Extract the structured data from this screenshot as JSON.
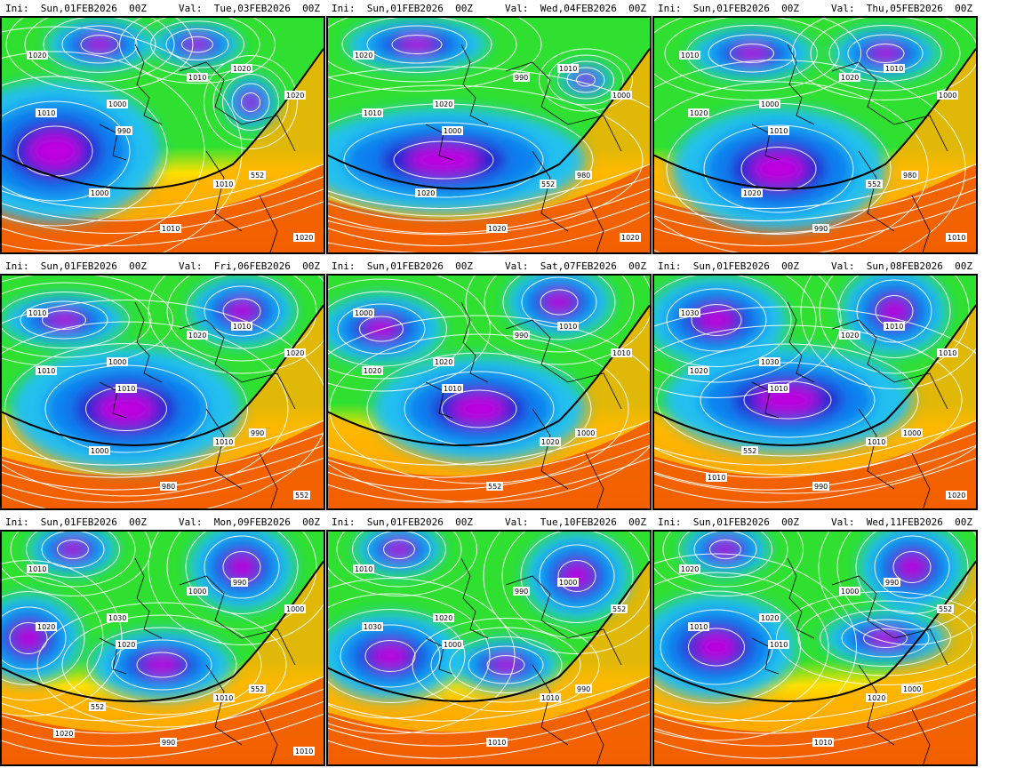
{
  "panels": [
    {
      "ini": "Ini:  Sun,01FEB2026  00Z",
      "val": "Val:  Tue,03FEB2026  00Z",
      "labels": [
        "1020",
        "1010",
        "1000",
        "990",
        "1010",
        "1020",
        "552",
        "1010",
        "1020",
        "1010",
        "1000",
        "1020"
      ]
    },
    {
      "ini": "Ini:  Sun,01FEB2026  00Z",
      "val": "Val:  Wed,04FEB2026  00Z",
      "labels": [
        "1020",
        "1010",
        "1020",
        "1000",
        "990",
        "1010",
        "980",
        "1020",
        "1000",
        "552",
        "1020",
        "1020"
      ]
    },
    {
      "ini": "Ini:  Sun,01FEB2026  00Z",
      "val": "Val:  Thu,05FEB2026  00Z",
      "labels": [
        "1010",
        "1020",
        "1000",
        "1010",
        "1020",
        "1010",
        "980",
        "990",
        "1000",
        "552",
        "1020",
        "1010"
      ]
    },
    {
      "ini": "Ini:  Sun,01FEB2026  00Z",
      "val": "Val:  Fri,06FEB2026  00Z",
      "labels": [
        "1010",
        "1010",
        "1000",
        "1010",
        "1020",
        "1010",
        "990",
        "980",
        "1020",
        "1010",
        "1000",
        "552"
      ]
    },
    {
      "ini": "Ini:  Sun,01FEB2026  00Z",
      "val": "Val:  Sat,07FEB2026  00Z",
      "labels": [
        "1000",
        "1020",
        "1020",
        "1010",
        "990",
        "1010",
        "1000",
        "552",
        "1010",
        "1020"
      ]
    },
    {
      "ini": "Ini:  Sun,01FEB2026  00Z",
      "val": "Val:  Sun,08FEB2026  00Z",
      "labels": [
        "1030",
        "1020",
        "1030",
        "1010",
        "1020",
        "1010",
        "1000",
        "990",
        "1010",
        "1010",
        "552",
        "1020",
        "1010"
      ]
    },
    {
      "ini": "Ini:  Sun,01FEB2026  00Z",
      "val": "Val:  Mon,09FEB2026  00Z",
      "labels": [
        "1010",
        "1020",
        "1030",
        "1020",
        "1000",
        "990",
        "552",
        "990",
        "1000",
        "1010",
        "552",
        "1010",
        "1020"
      ]
    },
    {
      "ini": "Ini:  Sun,01FEB2026  00Z",
      "val": "Val:  Tue,10FEB2026  00Z",
      "labels": [
        "1010",
        "1030",
        "1020",
        "1000",
        "990",
        "1000",
        "990",
        "1010",
        "552",
        "1010"
      ]
    },
    {
      "ini": "Ini:  Sun,01FEB2026  00Z",
      "val": "Val:  Wed,11FEB2026  00Z",
      "labels": [
        "1020",
        "1010",
        "1020",
        "1010",
        "1000",
        "990",
        "1000",
        "1010",
        "552",
        "1020"
      ]
    }
  ],
  "colors": {
    "palette": [
      "#3a0060",
      "#7a00c0",
      "#c000e0",
      "#2020d0",
      "#1080f0",
      "#20c0f0",
      "#30e0a0",
      "#30e030",
      "#c0f020",
      "#ffe000",
      "#ffb000",
      "#ff8000",
      "#f05000",
      "#d02000",
      "#a00000"
    ],
    "contour": "#ffffff",
    "line552": "#000000",
    "coast": "#000000"
  }
}
